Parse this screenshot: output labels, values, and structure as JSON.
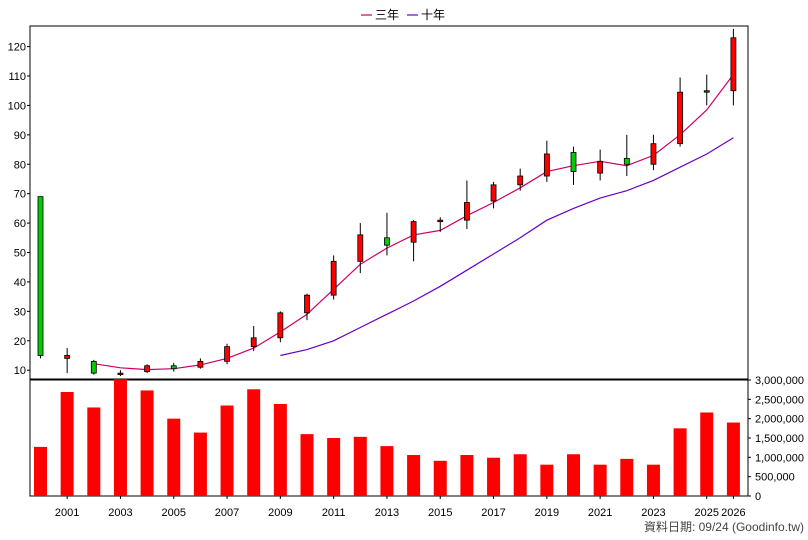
{
  "colors": {
    "up_candle": "#ff0000",
    "down_candle": "#00cc00",
    "ma3": "#cc0066",
    "ma10": "#6600cc",
    "volume": "#ff0000",
    "grid": "#999999"
  },
  "credit_text": "資料日期: 09/24 (Goodinfo.tw)",
  "chart_data": [
    {
      "type": "candlestick",
      "legend_position": "top-center",
      "grid": true,
      "ylim": [
        7,
        127
      ],
      "yticks": [
        10,
        20,
        30,
        40,
        50,
        60,
        70,
        80,
        90,
        100,
        110,
        120
      ],
      "series_names": {
        "ma3": "三年",
        "ma10": "十年"
      },
      "candles": [
        {
          "year": 2000,
          "open": 69,
          "high": 69,
          "low": 14,
          "close": 15
        },
        {
          "year": 2001,
          "open": 14,
          "high": 17.5,
          "low": 9,
          "close": 15
        },
        {
          "year": 2002,
          "open": 13,
          "high": 13.5,
          "low": 8.5,
          "close": 9
        },
        {
          "year": 2003,
          "open": 9,
          "high": 10,
          "low": 8,
          "close": 9
        },
        {
          "year": 2004,
          "open": 9.5,
          "high": 12,
          "low": 9,
          "close": 11.5
        },
        {
          "year": 2005,
          "open": 11.5,
          "high": 12.5,
          "low": 9.5,
          "close": 10.5
        },
        {
          "year": 2006,
          "open": 11,
          "high": 14,
          "low": 10.5,
          "close": 13
        },
        {
          "year": 2007,
          "open": 13,
          "high": 19,
          "low": 12,
          "close": 18
        },
        {
          "year": 2008,
          "open": 18,
          "high": 25,
          "low": 16.5,
          "close": 21
        },
        {
          "year": 2009,
          "open": 21,
          "high": 30,
          "low": 19.5,
          "close": 29.5
        },
        {
          "year": 2010,
          "open": 29.5,
          "high": 36,
          "low": 27,
          "close": 35.5
        },
        {
          "year": 2011,
          "open": 35.5,
          "high": 49,
          "low": 34,
          "close": 47
        },
        {
          "year": 2012,
          "open": 47,
          "high": 60,
          "low": 43,
          "close": 56
        },
        {
          "year": 2013,
          "open": 55,
          "high": 63.5,
          "low": 49,
          "close": 52.5
        },
        {
          "year": 2014,
          "open": 53.5,
          "high": 61,
          "low": 47,
          "close": 60.5
        },
        {
          "year": 2015,
          "open": 60.5,
          "high": 62,
          "low": 57,
          "close": 61
        },
        {
          "year": 2016,
          "open": 61,
          "high": 74.5,
          "low": 58,
          "close": 67
        },
        {
          "year": 2017,
          "open": 67.5,
          "high": 74,
          "low": 65,
          "close": 73
        },
        {
          "year": 2018,
          "open": 73,
          "high": 78.5,
          "low": 71,
          "close": 76
        },
        {
          "year": 2019,
          "open": 76,
          "high": 88,
          "low": 74,
          "close": 83.5
        },
        {
          "year": 2020,
          "open": 84,
          "high": 86,
          "low": 73,
          "close": 77.5
        },
        {
          "year": 2021,
          "open": 77,
          "high": 85,
          "low": 74.5,
          "close": 81
        },
        {
          "year": 2022,
          "open": 82,
          "high": 90,
          "low": 76,
          "close": 80
        },
        {
          "year": 2023,
          "open": 80,
          "high": 90,
          "low": 78,
          "close": 87
        },
        {
          "year": 2024,
          "open": 87,
          "high": 109.5,
          "low": 86,
          "close": 104.5
        },
        {
          "year": 2025,
          "open": 104.5,
          "high": 110.5,
          "low": 100,
          "close": 105
        },
        {
          "year": 2026,
          "open": 105,
          "high": 126,
          "low": 100,
          "close": 123
        }
      ],
      "ma3": [
        {
          "year": 2002,
          "value": 12.2
        },
        {
          "year": 2003,
          "value": 10.8
        },
        {
          "year": 2004,
          "value": 10.2
        },
        {
          "year": 2005,
          "value": 10.5
        },
        {
          "year": 2006,
          "value": 11.8
        },
        {
          "year": 2007,
          "value": 14
        },
        {
          "year": 2008,
          "value": 17.5
        },
        {
          "year": 2009,
          "value": 23
        },
        {
          "year": 2010,
          "value": 29
        },
        {
          "year": 2011,
          "value": 37.5
        },
        {
          "year": 2012,
          "value": 46
        },
        {
          "year": 2013,
          "value": 51.5
        },
        {
          "year": 2014,
          "value": 56
        },
        {
          "year": 2015,
          "value": 57.5
        },
        {
          "year": 2016,
          "value": 62.5
        },
        {
          "year": 2017,
          "value": 67
        },
        {
          "year": 2018,
          "value": 72
        },
        {
          "year": 2019,
          "value": 77.5
        },
        {
          "year": 2020,
          "value": 79.5
        },
        {
          "year": 2021,
          "value": 81
        },
        {
          "year": 2022,
          "value": 79.5
        },
        {
          "year": 2023,
          "value": 83
        },
        {
          "year": 2024,
          "value": 90
        },
        {
          "year": 2025,
          "value": 98.5
        },
        {
          "year": 2026,
          "value": 110.5
        }
      ],
      "ma10": [
        {
          "year": 2009,
          "value": 15
        },
        {
          "year": 2010,
          "value": 17
        },
        {
          "year": 2011,
          "value": 20
        },
        {
          "year": 2012,
          "value": 24.5
        },
        {
          "year": 2013,
          "value": 29
        },
        {
          "year": 2014,
          "value": 33.5
        },
        {
          "year": 2015,
          "value": 38.5
        },
        {
          "year": 2016,
          "value": 44
        },
        {
          "year": 2017,
          "value": 49.5
        },
        {
          "year": 2018,
          "value": 55
        },
        {
          "year": 2019,
          "value": 61
        },
        {
          "year": 2020,
          "value": 65
        },
        {
          "year": 2021,
          "value": 68.5
        },
        {
          "year": 2022,
          "value": 71
        },
        {
          "year": 2023,
          "value": 74.5
        },
        {
          "year": 2024,
          "value": 79
        },
        {
          "year": 2025,
          "value": 83.5
        },
        {
          "year": 2026,
          "value": 89
        }
      ]
    },
    {
      "type": "bar",
      "grid": true,
      "ylim": [
        0,
        3000000
      ],
      "ytick_labels": [
        "0",
        "500,000",
        "1,000,000",
        "1,500,000",
        "2,000,000",
        "2,500,000",
        "3,000,000"
      ],
      "ytick_values": [
        0,
        500000,
        1000000,
        1500000,
        2000000,
        2500000,
        3000000
      ],
      "xtick_labels": [
        "2001",
        "2003",
        "2005",
        "2007",
        "2009",
        "2011",
        "2013",
        "2015",
        "2017",
        "2019",
        "2021",
        "2023",
        "2025",
        "2026"
      ],
      "years": [
        2000,
        2001,
        2002,
        2003,
        2004,
        2005,
        2006,
        2007,
        2008,
        2009,
        2010,
        2011,
        2012,
        2013,
        2014,
        2015,
        2016,
        2017,
        2018,
        2019,
        2020,
        2021,
        2022,
        2023,
        2024,
        2025,
        2026
      ],
      "values": [
        1270000,
        2690000,
        2290000,
        3020000,
        2730000,
        2000000,
        1640000,
        2340000,
        2760000,
        2380000,
        1600000,
        1500000,
        1530000,
        1290000,
        1060000,
        910000,
        1060000,
        990000,
        1080000,
        810000,
        1080000,
        810000,
        960000,
        810000,
        1750000,
        2160000,
        1900000
      ]
    }
  ]
}
